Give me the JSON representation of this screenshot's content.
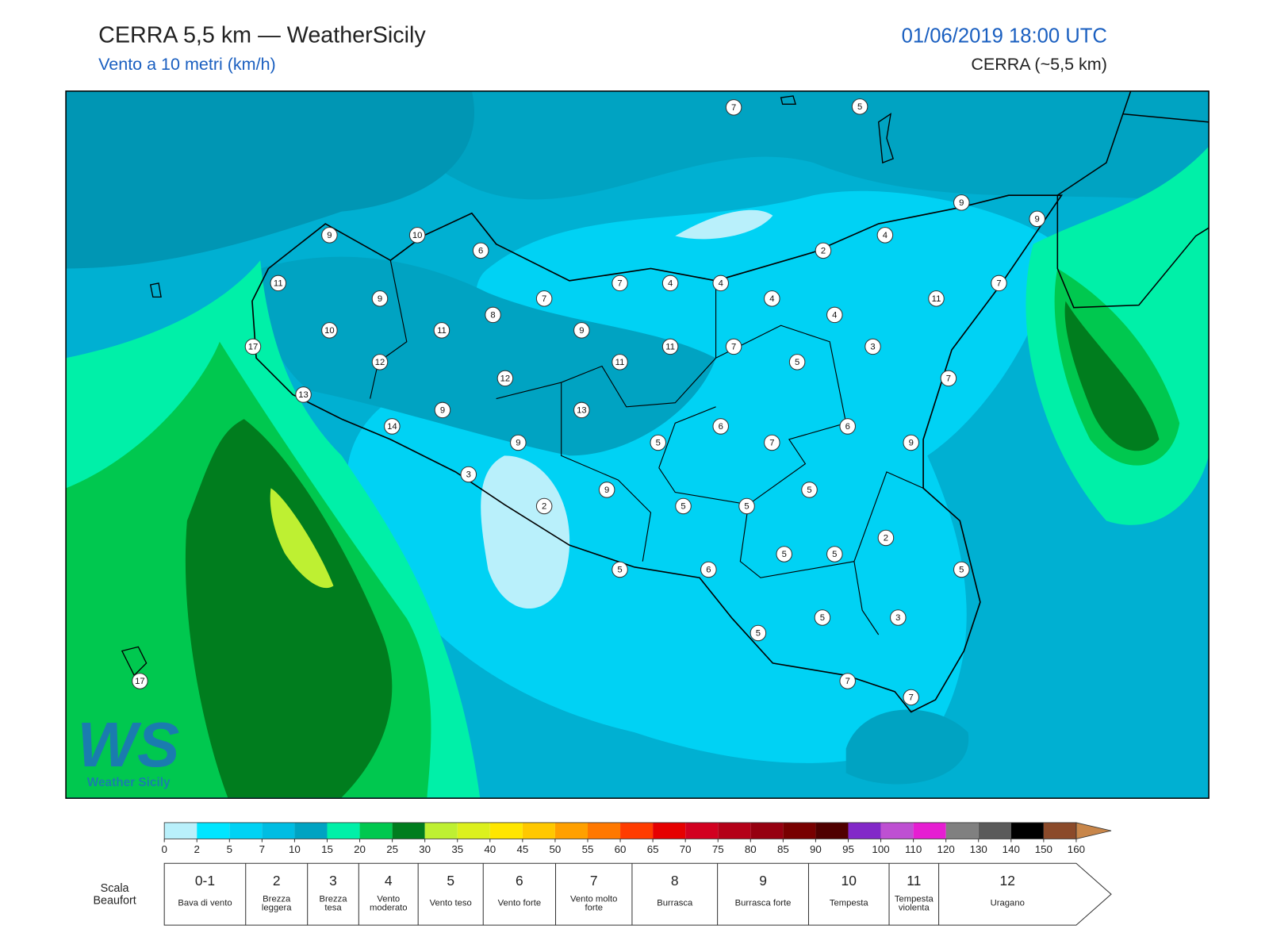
{
  "header": {
    "title": "CERRA 5,5 km — WeatherSicily",
    "subtitle": "Vento a 10 metri (km/h)",
    "datetime": "01/06/2019 18:00 UTC",
    "model": "CERRA (~5,5 km)"
  },
  "logo": {
    "mark": "WS",
    "name": "Weather Sicily"
  },
  "station_wind": [
    7,
    5,
    9,
    9,
    9,
    10,
    6,
    2,
    4,
    11,
    7,
    4,
    4,
    7,
    9,
    7,
    4,
    11,
    8,
    4,
    10,
    11,
    9,
    17,
    11,
    7,
    3,
    12,
    11,
    5,
    12,
    7,
    13,
    9,
    13,
    14,
    6,
    6,
    9,
    5,
    7,
    9,
    3,
    9,
    5,
    2,
    5,
    5,
    2,
    5,
    5,
    5,
    6,
    5,
    5,
    3,
    5,
    17,
    7,
    7
  ],
  "colorbar": {
    "ticks": [
      0,
      2,
      5,
      7,
      10,
      15,
      20,
      25,
      30,
      35,
      40,
      45,
      50,
      55,
      60,
      65,
      70,
      75,
      80,
      85,
      90,
      95,
      100,
      110,
      120,
      130,
      140,
      150,
      160
    ],
    "colors": [
      "#b9f0fb",
      "#00e6ff",
      "#00d2f4",
      "#00bde2",
      "#00a3c2",
      "#00f0a8",
      "#00c84f",
      "#007d1e",
      "#bef032",
      "#dcf01e",
      "#ffe600",
      "#ffc800",
      "#ffa000",
      "#ff7800",
      "#ff3c00",
      "#e60000",
      "#d20020",
      "#b40018",
      "#960010",
      "#780000",
      "#500000",
      "#8228c8",
      "#be50d2",
      "#e61ed2",
      "#808080",
      "#5a5a5a",
      "#000000",
      "#8b4a2a",
      "#c8864a"
    ]
  },
  "beaufort": {
    "label": "Scala Beaufort",
    "levels": [
      {
        "force": "0-1",
        "name": "Bava di vento"
      },
      {
        "force": "2",
        "name": "Brezza leggera"
      },
      {
        "force": "3",
        "name": "Brezza tesa"
      },
      {
        "force": "4",
        "name": "Vento moderato"
      },
      {
        "force": "5",
        "name": "Vento teso"
      },
      {
        "force": "6",
        "name": "Vento forte"
      },
      {
        "force": "7",
        "name": "Vento molto forte"
      },
      {
        "force": "8",
        "name": "Burrasca"
      },
      {
        "force": "9",
        "name": "Burrasca forte"
      },
      {
        "force": "10",
        "name": "Tempesta"
      },
      {
        "force": "11",
        "name": "Tempesta violenta"
      },
      {
        "force": "12",
        "name": "Uragano"
      }
    ]
  }
}
